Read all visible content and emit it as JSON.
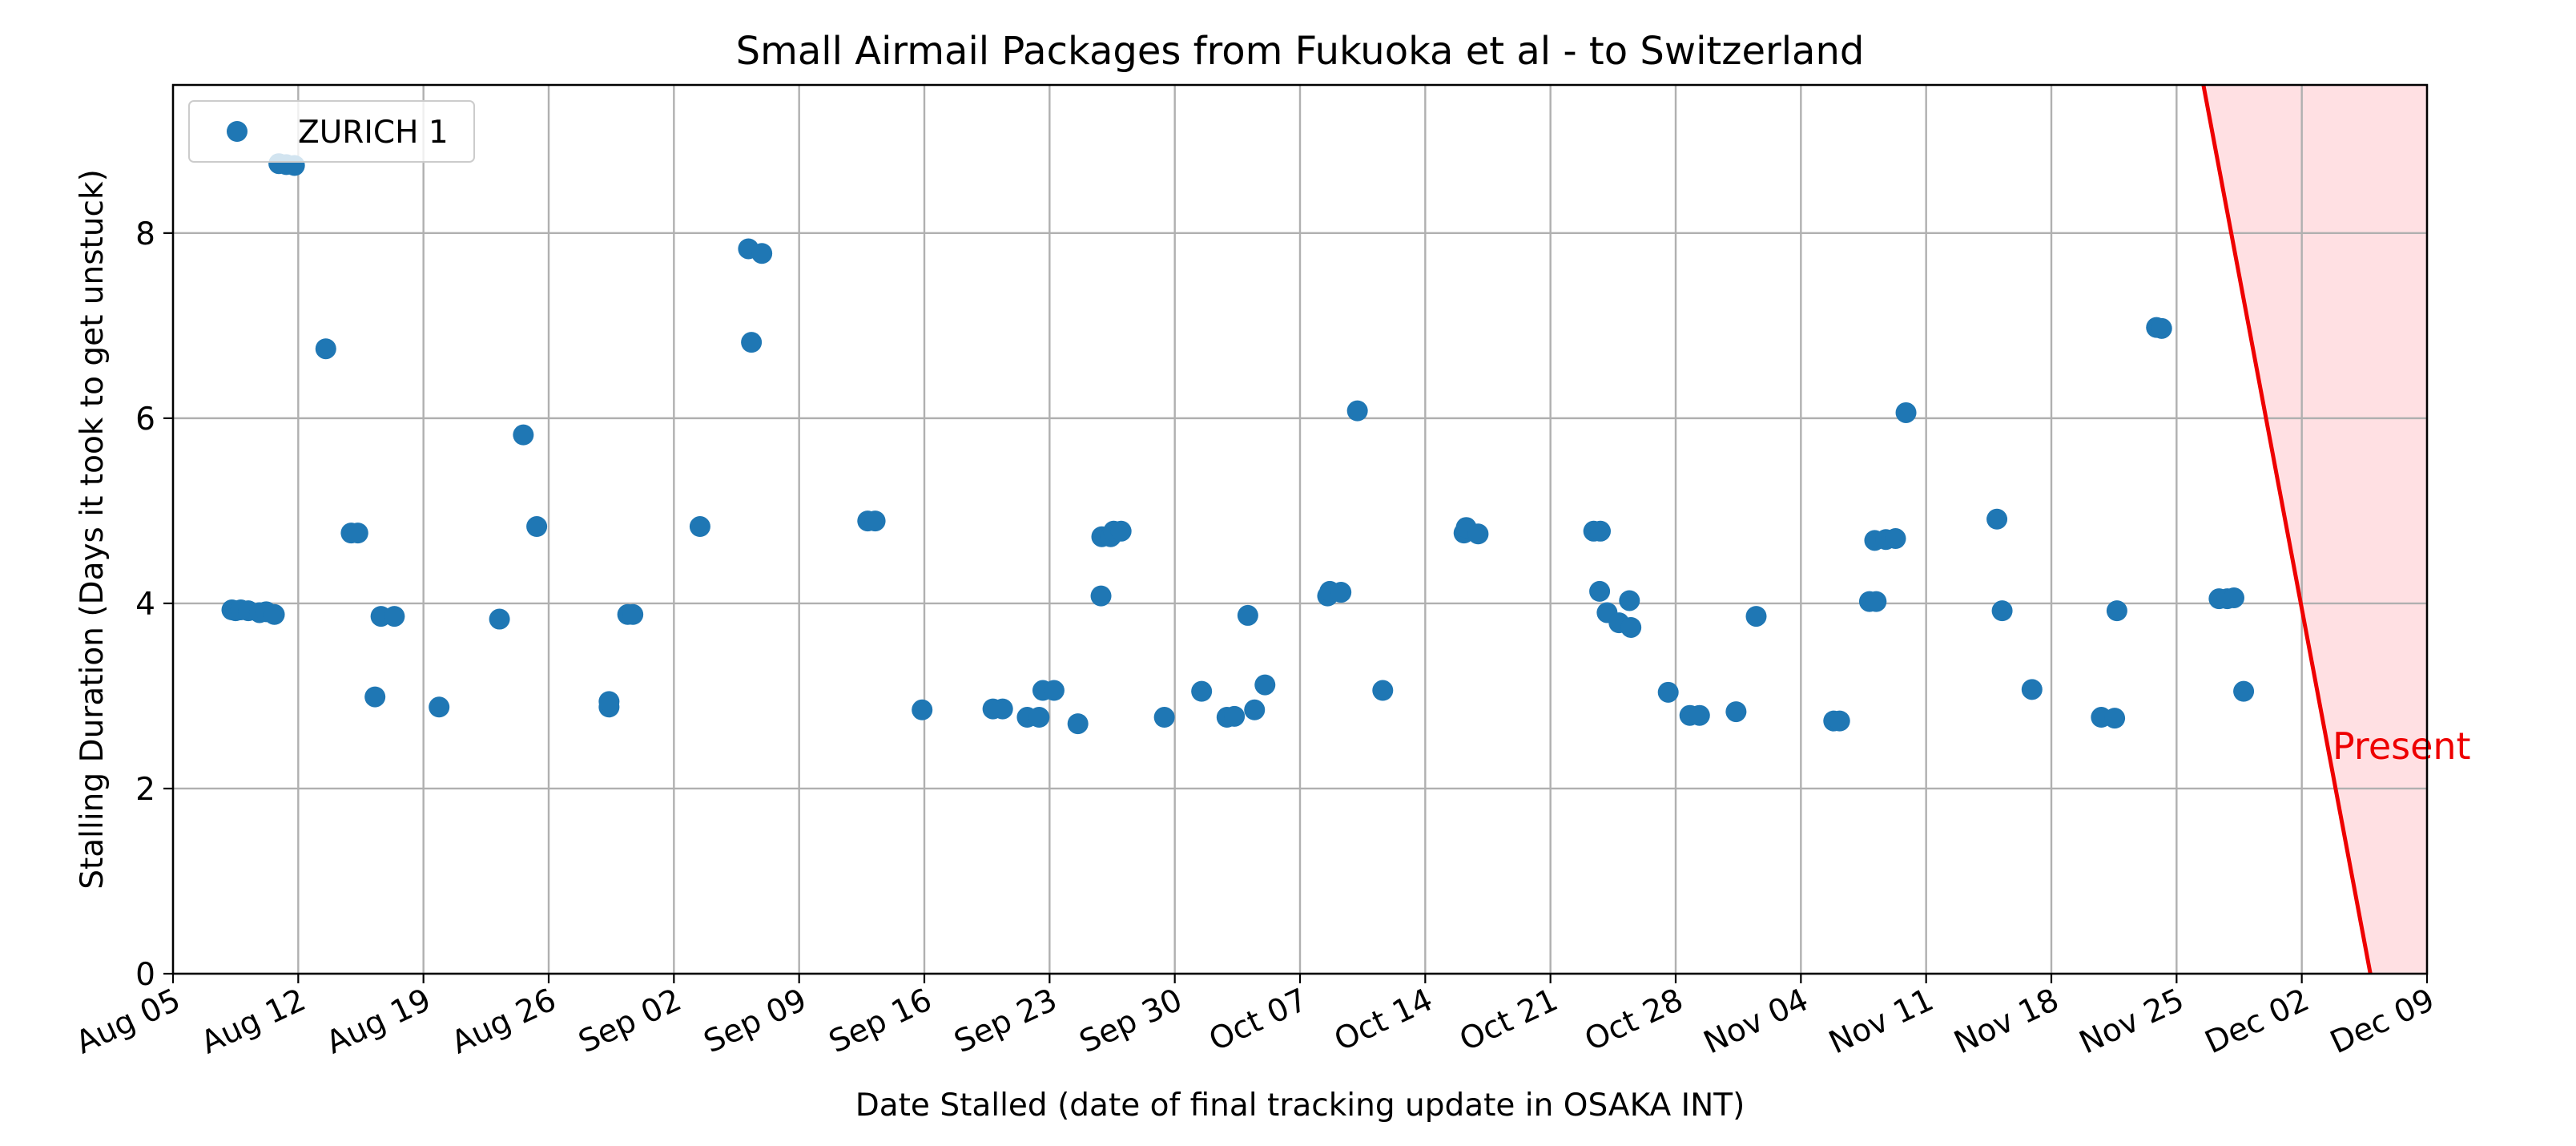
{
  "chart_data": {
    "type": "scatter",
    "title": "Small Airmail Packages from Fukuoka et al - to Switzerland",
    "xlabel": "Date Stalled (date of final tracking update in OSAKA INT)",
    "ylabel": "Stalling Duration (Days it took to get unstuck)",
    "xlim": [
      "2024-08-05",
      "2024-12-09"
    ],
    "ylim": [
      0,
      9.6
    ],
    "x_ticks": [
      {
        "date": "2024-08-05",
        "label": "Aug 05"
      },
      {
        "date": "2024-08-12",
        "label": "Aug 12"
      },
      {
        "date": "2024-08-19",
        "label": "Aug 19"
      },
      {
        "date": "2024-08-26",
        "label": "Aug 26"
      },
      {
        "date": "2024-09-02",
        "label": "Sep 02"
      },
      {
        "date": "2024-09-09",
        "label": "Sep 09"
      },
      {
        "date": "2024-09-16",
        "label": "Sep 16"
      },
      {
        "date": "2024-09-23",
        "label": "Sep 23"
      },
      {
        "date": "2024-09-30",
        "label": "Sep 30"
      },
      {
        "date": "2024-10-07",
        "label": "Oct 07"
      },
      {
        "date": "2024-10-14",
        "label": "Oct 14"
      },
      {
        "date": "2024-10-21",
        "label": "Oct 21"
      },
      {
        "date": "2024-10-28",
        "label": "Oct 28"
      },
      {
        "date": "2024-11-04",
        "label": "Nov 04"
      },
      {
        "date": "2024-11-11",
        "label": "Nov 11"
      },
      {
        "date": "2024-11-18",
        "label": "Nov 18"
      },
      {
        "date": "2024-11-25",
        "label": "Nov 25"
      },
      {
        "date": "2024-12-02",
        "label": "Dec 02"
      },
      {
        "date": "2024-12-09",
        "label": "Dec 09"
      }
    ],
    "y_ticks": [
      0,
      2,
      4,
      6,
      8
    ],
    "grid": true,
    "legend_position": "top-left",
    "series": [
      {
        "name": "ZURICH 1",
        "color": "#1f77b4",
        "points": [
          {
            "x": "2024-08-08T07:00",
            "y": 3.93
          },
          {
            "x": "2024-08-08T12:00",
            "y": 3.92
          },
          {
            "x": "2024-08-08T19:00",
            "y": 3.93
          },
          {
            "x": "2024-08-09T05:00",
            "y": 3.92
          },
          {
            "x": "2024-08-09T20:00",
            "y": 3.9
          },
          {
            "x": "2024-08-10T05:00",
            "y": 3.91
          },
          {
            "x": "2024-08-10T16:00",
            "y": 3.88
          },
          {
            "x": "2024-08-10T22:00",
            "y": 8.75
          },
          {
            "x": "2024-08-11T08:00",
            "y": 8.74
          },
          {
            "x": "2024-08-11T19:00",
            "y": 8.73
          },
          {
            "x": "2024-08-13T13:00",
            "y": 6.75
          },
          {
            "x": "2024-08-14T23:00",
            "y": 4.76
          },
          {
            "x": "2024-08-15T08:00",
            "y": 4.76
          },
          {
            "x": "2024-08-16T07:00",
            "y": 2.99
          },
          {
            "x": "2024-08-16T15:00",
            "y": 3.86
          },
          {
            "x": "2024-08-17T09:00",
            "y": 3.86
          },
          {
            "x": "2024-08-19T21:00",
            "y": 2.88
          },
          {
            "x": "2024-08-23T06:00",
            "y": 3.83
          },
          {
            "x": "2024-08-24T14:00",
            "y": 5.82
          },
          {
            "x": "2024-08-25T08:00",
            "y": 4.83
          },
          {
            "x": "2024-08-29T09:00",
            "y": 2.88
          },
          {
            "x": "2024-08-29T09:00",
            "y": 2.94
          },
          {
            "x": "2024-08-30T10:00",
            "y": 3.88
          },
          {
            "x": "2024-08-30T17:00",
            "y": 3.88
          },
          {
            "x": "2024-09-03T11:00",
            "y": 4.83
          },
          {
            "x": "2024-09-06T04:00",
            "y": 7.83
          },
          {
            "x": "2024-09-06T08:00",
            "y": 6.82
          },
          {
            "x": "2024-09-06T22:00",
            "y": 7.78
          },
          {
            "x": "2024-09-12T20:00",
            "y": 4.89
          },
          {
            "x": "2024-09-13T06:00",
            "y": 4.89
          },
          {
            "x": "2024-09-15T21:00",
            "y": 2.85
          },
          {
            "x": "2024-09-19T20:00",
            "y": 2.86
          },
          {
            "x": "2024-09-20T09:00",
            "y": 2.86
          },
          {
            "x": "2024-09-21T18:00",
            "y": 2.77
          },
          {
            "x": "2024-09-22T10:00",
            "y": 2.77
          },
          {
            "x": "2024-09-22T15:00",
            "y": 3.06
          },
          {
            "x": "2024-09-23T06:00",
            "y": 3.06
          },
          {
            "x": "2024-09-24T14:00",
            "y": 2.7
          },
          {
            "x": "2024-09-25T21:00",
            "y": 4.08
          },
          {
            "x": "2024-09-25T22:00",
            "y": 4.72
          },
          {
            "x": "2024-09-26T10:00",
            "y": 4.72
          },
          {
            "x": "2024-09-26T14:00",
            "y": 4.78
          },
          {
            "x": "2024-09-27T00:00",
            "y": 4.78
          },
          {
            "x": "2024-09-29T10:00",
            "y": 2.77
          },
          {
            "x": "2024-10-01T12:00",
            "y": 3.05
          },
          {
            "x": "2024-10-02T22:00",
            "y": 2.77
          },
          {
            "x": "2024-10-03T08:00",
            "y": 2.78
          },
          {
            "x": "2024-10-04T02:00",
            "y": 3.87
          },
          {
            "x": "2024-10-04T11:00",
            "y": 2.85
          },
          {
            "x": "2024-10-05T01:00",
            "y": 3.12
          },
          {
            "x": "2024-10-08T13:00",
            "y": 4.08
          },
          {
            "x": "2024-10-08T16:00",
            "y": 4.13
          },
          {
            "x": "2024-10-09T07:00",
            "y": 4.12
          },
          {
            "x": "2024-10-10T05:00",
            "y": 6.08
          },
          {
            "x": "2024-10-11T15:00",
            "y": 3.06
          },
          {
            "x": "2024-10-16T04:00",
            "y": 4.76
          },
          {
            "x": "2024-10-16T07:00",
            "y": 4.82
          },
          {
            "x": "2024-10-16T23:00",
            "y": 4.75
          },
          {
            "x": "2024-10-23T10:00",
            "y": 4.78
          },
          {
            "x": "2024-10-23T19:00",
            "y": 4.78
          },
          {
            "x": "2024-10-23T18:00",
            "y": 4.13
          },
          {
            "x": "2024-10-24T04:00",
            "y": 3.9
          },
          {
            "x": "2024-10-24T20:00",
            "y": 3.79
          },
          {
            "x": "2024-10-25T10:00",
            "y": 4.03
          },
          {
            "x": "2024-10-25T12:00",
            "y": 3.74
          },
          {
            "x": "2024-10-27T14:00",
            "y": 3.04
          },
          {
            "x": "2024-10-28T19:00",
            "y": 2.79
          },
          {
            "x": "2024-10-29T08:00",
            "y": 2.79
          },
          {
            "x": "2024-10-31T09:00",
            "y": 2.83
          },
          {
            "x": "2024-11-01T12:00",
            "y": 3.86
          },
          {
            "x": "2024-11-05T20:00",
            "y": 2.73
          },
          {
            "x": "2024-11-06T04:00",
            "y": 2.73
          },
          {
            "x": "2024-11-07T20:00",
            "y": 4.02
          },
          {
            "x": "2024-11-08T05:00",
            "y": 4.02
          },
          {
            "x": "2024-11-08T03:00",
            "y": 4.68
          },
          {
            "x": "2024-11-08T18:00",
            "y": 4.69
          },
          {
            "x": "2024-11-09T07:00",
            "y": 4.7
          },
          {
            "x": "2024-11-09T21:00",
            "y": 6.06
          },
          {
            "x": "2024-11-14T23:00",
            "y": 4.91
          },
          {
            "x": "2024-11-15T06:00",
            "y": 3.92
          },
          {
            "x": "2024-11-16T22:00",
            "y": 3.07
          },
          {
            "x": "2024-11-20T19:00",
            "y": 2.77
          },
          {
            "x": "2024-11-21T13:00",
            "y": 2.76
          },
          {
            "x": "2024-11-21T16:00",
            "y": 3.92
          },
          {
            "x": "2024-11-23T21:00",
            "y": 6.98
          },
          {
            "x": "2024-11-24T04:00",
            "y": 6.97
          },
          {
            "x": "2024-11-27T09:00",
            "y": 4.05
          },
          {
            "x": "2024-11-27T20:00",
            "y": 4.05
          },
          {
            "x": "2024-11-28T05:00",
            "y": 4.06
          },
          {
            "x": "2024-11-28T18:00",
            "y": 3.05
          }
        ]
      }
    ],
    "annotations": [
      {
        "text": "Present",
        "color": "#ee0000",
        "line_from": [
          "2024-11-26T12:00",
          9.6
        ],
        "line_to": [
          "2024-12-05T20:00",
          0
        ],
        "shaded_color": "#ffe0e3"
      }
    ]
  }
}
